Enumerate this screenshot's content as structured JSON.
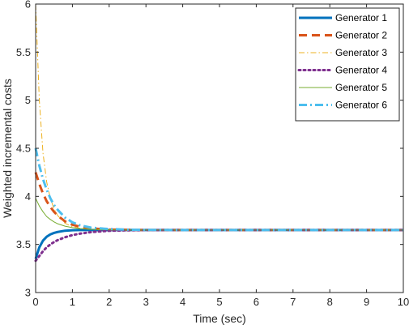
{
  "chart_data": {
    "type": "line",
    "xlabel": "Time (sec)",
    "ylabel": "Weighted incremental costs",
    "xlim": [
      0,
      10
    ],
    "ylim": [
      3,
      6
    ],
    "xticks": [
      0,
      1,
      2,
      3,
      4,
      5,
      6,
      7,
      8,
      9,
      10
    ],
    "yticks": [
      3,
      3.5,
      4,
      4.5,
      5,
      5.5,
      6
    ],
    "ytick_labels": [
      "3",
      "3.5",
      "4",
      "4.5",
      "5",
      "5.5",
      "6"
    ],
    "grid": false,
    "legend_position": "top-right",
    "x": [
      0,
      0.1,
      0.2,
      0.3,
      0.4,
      0.5,
      0.6,
      0.8,
      1.0,
      1.2,
      1.5,
      2.0,
      2.5,
      3.0,
      4.0,
      5.0,
      6.0,
      7.0,
      8.0,
      9.0,
      10.0
    ],
    "series": [
      {
        "name": "Generator 1",
        "color": "#0072BD",
        "dash": "solid",
        "width": 3,
        "values": [
          3.35,
          3.47,
          3.54,
          3.58,
          3.605,
          3.62,
          3.63,
          3.643,
          3.648,
          3.65,
          3.65,
          3.65,
          3.65,
          3.65,
          3.65,
          3.65,
          3.65,
          3.65,
          3.65,
          3.65,
          3.65
        ]
      },
      {
        "name": "Generator 2",
        "color": "#D95319",
        "dash": "dashed",
        "width": 3,
        "values": [
          4.25,
          4.13,
          4.03,
          3.95,
          3.89,
          3.84,
          3.8,
          3.74,
          3.705,
          3.685,
          3.667,
          3.655,
          3.652,
          3.65,
          3.65,
          3.65,
          3.65,
          3.65,
          3.65,
          3.65,
          3.65
        ]
      },
      {
        "name": "Generator 3",
        "color": "#EDB120",
        "dash": "dashdot",
        "width": 1,
        "values": [
          6.0,
          5.0,
          4.45,
          4.15,
          3.98,
          3.87,
          3.8,
          3.72,
          3.685,
          3.668,
          3.657,
          3.652,
          3.65,
          3.65,
          3.65,
          3.65,
          3.65,
          3.65,
          3.65,
          3.65,
          3.65
        ]
      },
      {
        "name": "Generator 4",
        "color": "#7E2F8E",
        "dash": "dotted",
        "width": 3,
        "values": [
          3.33,
          3.38,
          3.43,
          3.47,
          3.5,
          3.525,
          3.545,
          3.575,
          3.597,
          3.612,
          3.628,
          3.642,
          3.647,
          3.649,
          3.65,
          3.65,
          3.65,
          3.65,
          3.65,
          3.65,
          3.65
        ]
      },
      {
        "name": "Generator 5",
        "color": "#77AC30",
        "dash": "solid",
        "width": 1,
        "values": [
          3.98,
          3.9,
          3.84,
          3.79,
          3.76,
          3.735,
          3.715,
          3.69,
          3.675,
          3.665,
          3.657,
          3.652,
          3.65,
          3.65,
          3.65,
          3.65,
          3.65,
          3.65,
          3.65,
          3.65,
          3.65
        ]
      },
      {
        "name": "Generator 6",
        "color": "#4DBEEE",
        "dash": "dashdot",
        "width": 3,
        "values": [
          4.5,
          4.32,
          4.18,
          4.07,
          3.98,
          3.91,
          3.86,
          3.78,
          3.73,
          3.7,
          3.675,
          3.66,
          3.654,
          3.651,
          3.65,
          3.65,
          3.65,
          3.65,
          3.65,
          3.65,
          3.65
        ]
      }
    ]
  }
}
